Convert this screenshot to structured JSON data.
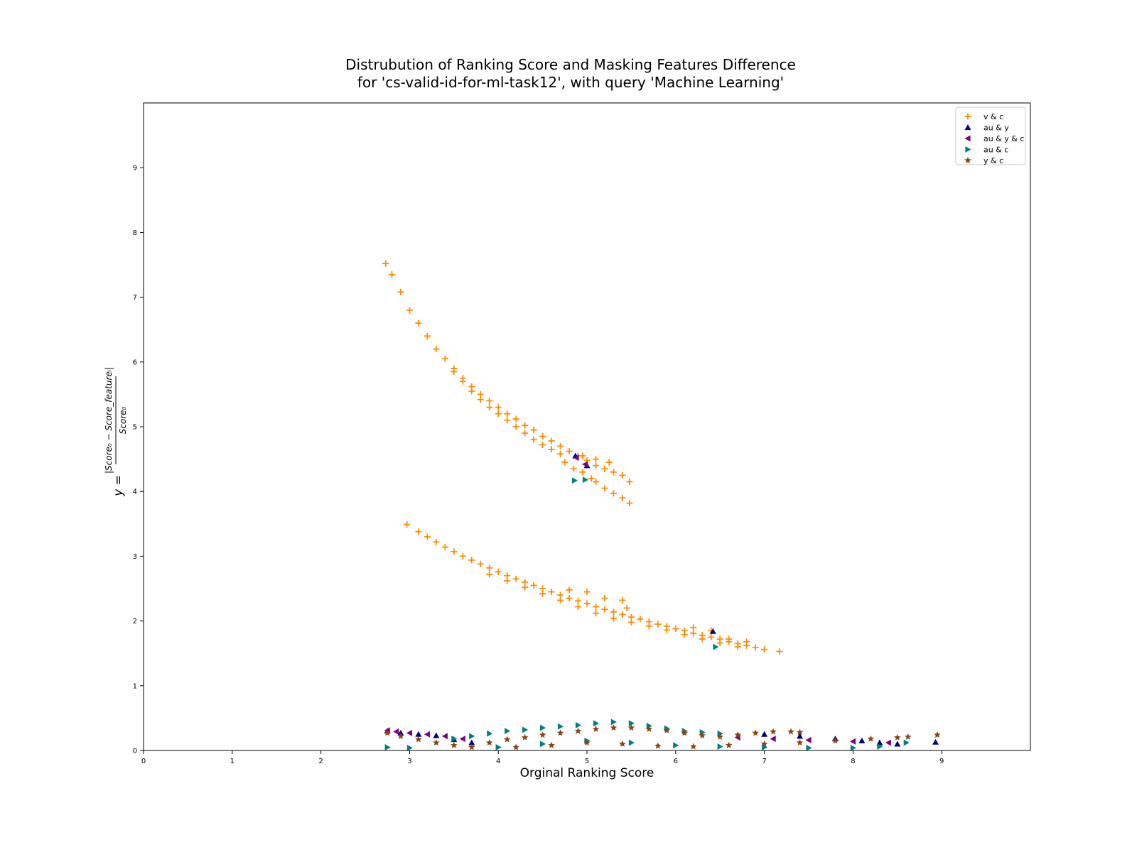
{
  "chart_data": {
    "type": "scatter",
    "title": "Distrubution of Ranking Score and Masking Features Difference",
    "subtitle": "for 'cs-valid-id-for-ml-task12', with query 'Machine Learning'",
    "xlabel": "Orginal Ranking Score",
    "ylabel_lhs": "y =",
    "ylabel_numerator": "|Score₀ − Score_featureᵢ|",
    "ylabel_denominator": "Score₀",
    "xlim": [
      0,
      10
    ],
    "ylim": [
      0,
      10
    ],
    "x_ticks": [
      0,
      1,
      2,
      3,
      4,
      5,
      6,
      7,
      8,
      9
    ],
    "y_ticks": [
      0,
      1,
      2,
      3,
      4,
      5,
      6,
      7,
      8,
      9
    ],
    "grid": false,
    "legend_position": "top-right",
    "series": [
      {
        "name": "v & c",
        "marker": "plus",
        "color": "#ff8c00",
        "points": [
          [
            2.73,
            7.52
          ],
          [
            2.8,
            7.35
          ],
          [
            2.9,
            7.08
          ],
          [
            3.0,
            6.8
          ],
          [
            3.1,
            6.6
          ],
          [
            3.2,
            6.4
          ],
          [
            3.3,
            6.2
          ],
          [
            3.4,
            6.05
          ],
          [
            3.5,
            5.9
          ],
          [
            3.6,
            5.75
          ],
          [
            3.7,
            5.62
          ],
          [
            3.8,
            5.5
          ],
          [
            3.9,
            5.4
          ],
          [
            4.0,
            5.3
          ],
          [
            4.1,
            5.2
          ],
          [
            4.2,
            5.12
          ],
          [
            4.3,
            5.02
          ],
          [
            4.4,
            4.95
          ],
          [
            4.5,
            4.85
          ],
          [
            4.6,
            4.78
          ],
          [
            4.7,
            4.7
          ],
          [
            4.8,
            4.62
          ],
          [
            4.9,
            4.55
          ],
          [
            5.0,
            4.48
          ],
          [
            5.1,
            4.4
          ],
          [
            5.2,
            4.35
          ],
          [
            5.3,
            4.3
          ],
          [
            5.4,
            4.25
          ],
          [
            5.48,
            4.15
          ],
          [
            3.5,
            5.85
          ],
          [
            3.6,
            5.7
          ],
          [
            3.7,
            5.55
          ],
          [
            3.8,
            5.42
          ],
          [
            3.9,
            5.3
          ],
          [
            4.0,
            5.2
          ],
          [
            4.1,
            5.1
          ],
          [
            4.2,
            5.0
          ],
          [
            4.3,
            4.9
          ],
          [
            4.4,
            4.8
          ],
          [
            4.5,
            4.72
          ],
          [
            4.6,
            4.65
          ],
          [
            4.7,
            4.58
          ],
          [
            4.75,
            4.45
          ],
          [
            4.85,
            4.35
          ],
          [
            4.95,
            4.3
          ],
          [
            5.05,
            4.2
          ],
          [
            5.1,
            4.15
          ],
          [
            5.2,
            4.05
          ],
          [
            5.3,
            3.97
          ],
          [
            5.4,
            3.9
          ],
          [
            5.48,
            3.82
          ],
          [
            5.25,
            4.45
          ],
          [
            5.1,
            4.5
          ],
          [
            4.95,
            4.55
          ],
          [
            2.97,
            3.49
          ],
          [
            3.1,
            3.38
          ],
          [
            3.2,
            3.3
          ],
          [
            3.3,
            3.22
          ],
          [
            3.4,
            3.14
          ],
          [
            3.5,
            3.07
          ],
          [
            3.6,
            3.0
          ],
          [
            3.7,
            2.94
          ],
          [
            3.8,
            2.88
          ],
          [
            3.9,
            2.82
          ],
          [
            4.0,
            2.76
          ],
          [
            4.1,
            2.7
          ],
          [
            4.2,
            2.65
          ],
          [
            4.3,
            2.6
          ],
          [
            4.4,
            2.55
          ],
          [
            4.5,
            2.5
          ],
          [
            4.6,
            2.45
          ],
          [
            4.7,
            2.4
          ],
          [
            4.8,
            2.35
          ],
          [
            4.9,
            2.31
          ],
          [
            5.0,
            2.27
          ],
          [
            5.1,
            2.22
          ],
          [
            5.2,
            2.18
          ],
          [
            5.3,
            2.14
          ],
          [
            5.4,
            2.1
          ],
          [
            5.5,
            2.06
          ],
          [
            5.6,
            2.03
          ],
          [
            5.7,
            1.99
          ],
          [
            5.8,
            1.95
          ],
          [
            5.9,
            1.92
          ],
          [
            6.0,
            1.88
          ],
          [
            6.1,
            1.85
          ],
          [
            6.2,
            1.81
          ],
          [
            6.3,
            1.78
          ],
          [
            6.4,
            1.75
          ],
          [
            6.5,
            1.72
          ],
          [
            6.6,
            1.68
          ],
          [
            6.7,
            1.65
          ],
          [
            6.8,
            1.62
          ],
          [
            6.9,
            1.59
          ],
          [
            7.0,
            1.56
          ],
          [
            7.17,
            1.53
          ],
          [
            3.9,
            2.72
          ],
          [
            4.1,
            2.62
          ],
          [
            4.3,
            2.52
          ],
          [
            4.5,
            2.42
          ],
          [
            4.7,
            2.32
          ],
          [
            4.9,
            2.22
          ],
          [
            5.1,
            2.12
          ],
          [
            5.3,
            2.04
          ],
          [
            5.5,
            1.98
          ],
          [
            5.7,
            1.92
          ],
          [
            5.9,
            1.86
          ],
          [
            6.1,
            1.79
          ],
          [
            6.3,
            1.72
          ],
          [
            6.5,
            1.66
          ],
          [
            6.7,
            1.6
          ],
          [
            5.4,
            2.32
          ],
          [
            5.45,
            2.2
          ],
          [
            5.2,
            2.35
          ],
          [
            5.0,
            2.45
          ],
          [
            4.8,
            2.48
          ],
          [
            6.2,
            1.9
          ],
          [
            6.4,
            1.85
          ],
          [
            6.6,
            1.72
          ],
          [
            6.8,
            1.68
          ]
        ]
      },
      {
        "name": "au & y",
        "marker": "tri_up",
        "color": "#000080",
        "points": [
          [
            2.75,
            0.3
          ],
          [
            2.9,
            0.27
          ],
          [
            3.1,
            0.25
          ],
          [
            3.3,
            0.23
          ],
          [
            3.5,
            0.17
          ],
          [
            3.7,
            0.12
          ],
          [
            4.87,
            4.55
          ],
          [
            5.0,
            4.4
          ],
          [
            6.42,
            1.84
          ],
          [
            7.0,
            0.25
          ],
          [
            7.4,
            0.22
          ],
          [
            7.8,
            0.18
          ],
          [
            8.1,
            0.15
          ],
          [
            8.3,
            0.12
          ],
          [
            8.5,
            0.1
          ],
          [
            8.93,
            0.13
          ]
        ]
      },
      {
        "name": "au & y & c",
        "marker": "tri_left",
        "color": "#800080",
        "points": [
          [
            2.75,
            0.31
          ],
          [
            2.85,
            0.29
          ],
          [
            3.0,
            0.27
          ],
          [
            3.2,
            0.25
          ],
          [
            3.4,
            0.22
          ],
          [
            3.6,
            0.18
          ],
          [
            4.88,
            4.52
          ],
          [
            4.98,
            4.42
          ],
          [
            6.7,
            0.2
          ],
          [
            7.1,
            0.18
          ],
          [
            7.5,
            0.16
          ],
          [
            8.0,
            0.14
          ],
          [
            8.4,
            0.12
          ]
        ]
      },
      {
        "name": "au & c",
        "marker": "tri_right",
        "color": "#008080",
        "points": [
          [
            2.75,
            0.05
          ],
          [
            3.0,
            0.04
          ],
          [
            3.5,
            0.18
          ],
          [
            3.7,
            0.22
          ],
          [
            3.9,
            0.26
          ],
          [
            4.1,
            0.3
          ],
          [
            4.3,
            0.32
          ],
          [
            4.5,
            0.35
          ],
          [
            4.7,
            0.37
          ],
          [
            4.9,
            0.39
          ],
          [
            5.1,
            0.42
          ],
          [
            5.3,
            0.44
          ],
          [
            5.5,
            0.42
          ],
          [
            5.7,
            0.38
          ],
          [
            5.9,
            0.34
          ],
          [
            6.1,
            0.3
          ],
          [
            6.3,
            0.28
          ],
          [
            6.5,
            0.26
          ],
          [
            4.0,
            0.05
          ],
          [
            4.5,
            0.1
          ],
          [
            5.0,
            0.15
          ],
          [
            5.5,
            0.12
          ],
          [
            6.0,
            0.08
          ],
          [
            6.5,
            0.06
          ],
          [
            7.0,
            0.05
          ],
          [
            7.5,
            0.04
          ],
          [
            8.0,
            0.04
          ],
          [
            8.3,
            0.06
          ],
          [
            8.6,
            0.12
          ],
          [
            4.86,
            4.17
          ],
          [
            4.98,
            4.18
          ],
          [
            6.45,
            1.6
          ]
        ]
      },
      {
        "name": "y & c",
        "marker": "star",
        "color": "#8b4513",
        "points": [
          [
            2.75,
            0.27
          ],
          [
            2.9,
            0.22
          ],
          [
            3.1,
            0.17
          ],
          [
            3.3,
            0.12
          ],
          [
            3.5,
            0.08
          ],
          [
            3.7,
            0.05
          ],
          [
            3.9,
            0.12
          ],
          [
            4.1,
            0.17
          ],
          [
            4.3,
            0.2
          ],
          [
            4.5,
            0.24
          ],
          [
            4.7,
            0.27
          ],
          [
            4.9,
            0.3
          ],
          [
            5.1,
            0.33
          ],
          [
            5.3,
            0.35
          ],
          [
            5.5,
            0.35
          ],
          [
            5.7,
            0.33
          ],
          [
            5.9,
            0.31
          ],
          [
            6.1,
            0.27
          ],
          [
            6.3,
            0.23
          ],
          [
            6.5,
            0.21
          ],
          [
            6.7,
            0.24
          ],
          [
            6.9,
            0.27
          ],
          [
            7.1,
            0.29
          ],
          [
            7.3,
            0.29
          ],
          [
            7.4,
            0.28
          ],
          [
            4.2,
            0.05
          ],
          [
            4.6,
            0.08
          ],
          [
            5.0,
            0.12
          ],
          [
            5.4,
            0.1
          ],
          [
            5.8,
            0.07
          ],
          [
            6.2,
            0.06
          ],
          [
            6.6,
            0.08
          ],
          [
            7.0,
            0.1
          ],
          [
            7.4,
            0.12
          ],
          [
            7.8,
            0.15
          ],
          [
            8.2,
            0.18
          ],
          [
            8.5,
            0.2
          ],
          [
            8.62,
            0.21
          ],
          [
            8.95,
            0.24
          ]
        ]
      }
    ]
  }
}
